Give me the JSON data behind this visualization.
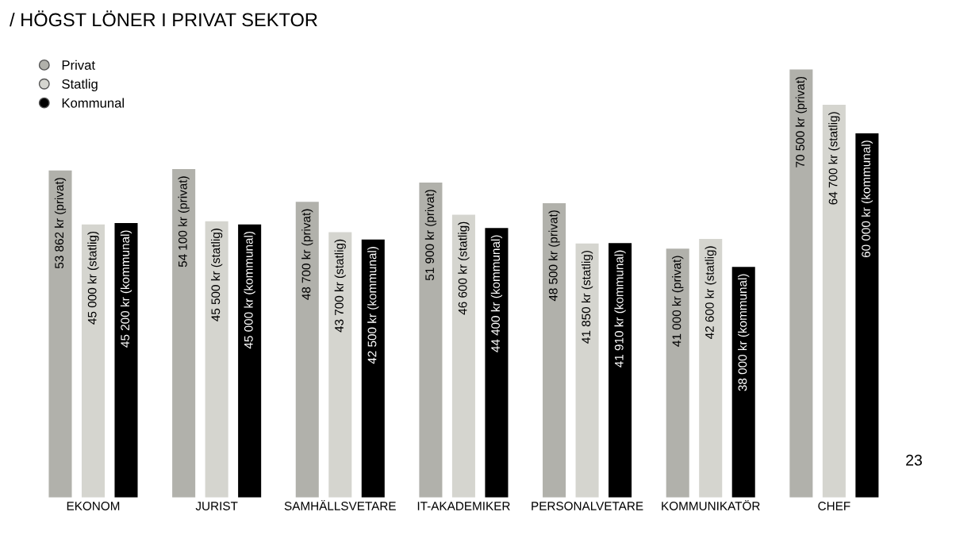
{
  "chart_data": {
    "type": "bar",
    "title": "/ HÖGST LÖNER I PRIVAT SEKTOR",
    "categories": [
      "EKONOM",
      "JURIST",
      "SAMHÄLLSVETARE",
      "IT-AKADEMIKER",
      "PERSONALVETARE",
      "KOMMUNIKATÖR",
      "CHEF"
    ],
    "series": [
      {
        "name": "Privat",
        "color": "#b1b1ab",
        "values": [
          53862,
          54100,
          48700,
          51900,
          48500,
          41000,
          70500
        ],
        "value_labels": [
          "53 862 kr (privat)",
          "54 100 kr (privat)",
          "48 700 kr (privat)",
          "51 900 kr (privat)",
          "48 500 kr (privat)",
          "41 000 kr (privat)",
          "70 500 kr (privat)"
        ]
      },
      {
        "name": "Statlig",
        "color": "#d5d5cf",
        "values": [
          45000,
          45500,
          43700,
          46600,
          41850,
          42600,
          64700
        ],
        "value_labels": [
          "45 000 kr (statlig)",
          "45 500 kr (statlig)",
          "43 700 kr (statlig)",
          "46 600 kr (statlig)",
          "41 850 kr (statlig)",
          "42 600 kr (statlig)",
          "64 700 kr (statlig)"
        ]
      },
      {
        "name": "Kommunal",
        "color": "#000000",
        "values": [
          45200,
          45000,
          42500,
          44400,
          41910,
          38000,
          60000
        ],
        "value_labels": [
          "45 200 kr (kommunal)",
          "45 000 kr (kommunal)",
          "42 500 kr (kommunal)",
          "44 400 kr (kommunal)",
          "41 910 kr (kommunal)",
          "38 000 kr (kommunal)",
          "60 000 kr (kommunal)"
        ]
      }
    ],
    "legend": "top left",
    "marker": "circle",
    "annotations": [
      "23"
    ]
  }
}
